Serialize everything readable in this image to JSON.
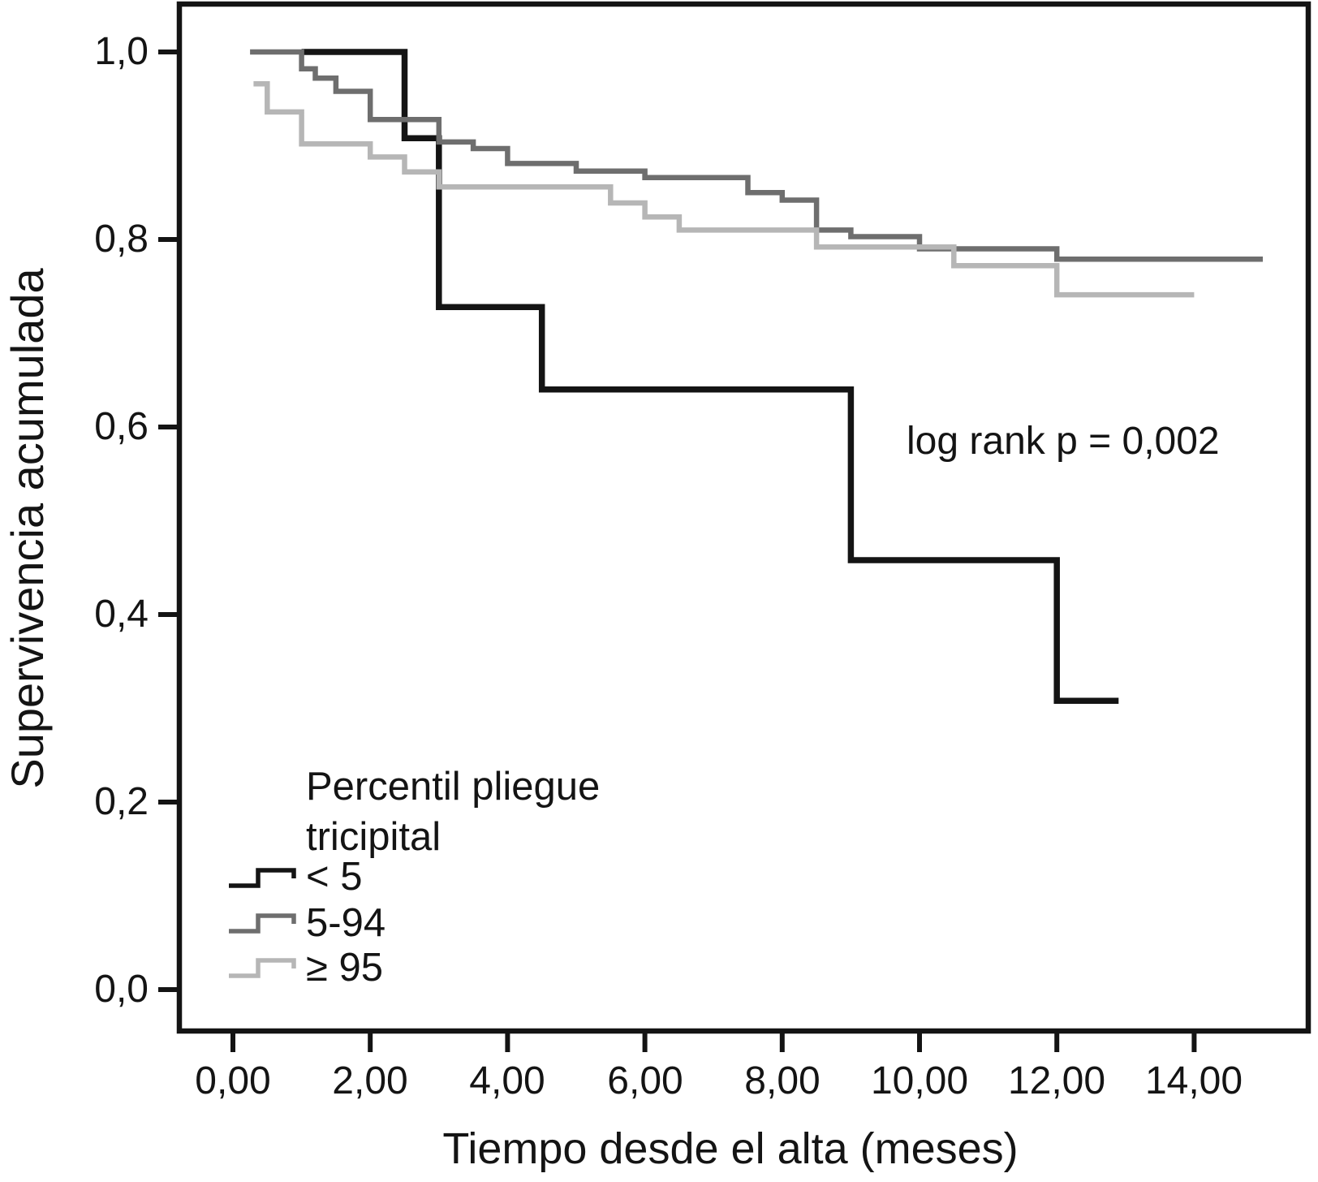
{
  "chart_data": {
    "type": "line",
    "variant": "kaplan_meier_step_survival",
    "title": "",
    "xlabel": "Tiempo desde el alta (meses)",
    "ylabel": "Supervivencia acumulada",
    "xlim": [
      -0.8,
      15.7
    ],
    "ylim": [
      -0.045,
      1.055
    ],
    "grid": false,
    "legend_position": "inside-lower-left",
    "x_ticks": {
      "values": [
        0,
        2,
        4,
        6,
        8,
        10,
        12,
        14
      ],
      "labels": [
        "0,00",
        "2,00",
        "4,00",
        "6,00",
        "8,00",
        "10,00",
        "12,00",
        "14,00"
      ]
    },
    "y_ticks": {
      "values": [
        1.0,
        0.8,
        0.6,
        0.4,
        0.2,
        0.0
      ],
      "labels": [
        "1,0",
        "0,8",
        "0,6",
        "0,4",
        "0,2",
        "0,0"
      ]
    },
    "annotation": {
      "text": "log rank p = 0,002",
      "x": 9.8,
      "y": 0.585
    },
    "series": [
      {
        "name": "< 5",
        "color": "#141414",
        "stroke_width": 7.5,
        "start": [
          1.0,
          1.0
        ],
        "steps": [
          [
            2.5,
            0.908
          ],
          [
            3.0,
            0.728
          ],
          [
            4.5,
            0.64
          ],
          [
            9.0,
            0.458
          ],
          [
            12.0,
            0.308
          ]
        ],
        "end": 12.9
      },
      {
        "name": "5-94",
        "color": "#6e6e6e",
        "stroke_width": 6.5,
        "start": [
          0.25,
          1.0
        ],
        "steps": [
          [
            1.0,
            0.982
          ],
          [
            1.2,
            0.972
          ],
          [
            1.5,
            0.958
          ],
          [
            2.0,
            0.928
          ],
          [
            3.0,
            0.904
          ],
          [
            3.5,
            0.897
          ],
          [
            4.0,
            0.881
          ],
          [
            5.0,
            0.873
          ],
          [
            6.0,
            0.866
          ],
          [
            7.5,
            0.85
          ],
          [
            8.0,
            0.842
          ],
          [
            8.5,
            0.81
          ],
          [
            9.0,
            0.803
          ],
          [
            10.0,
            0.79
          ],
          [
            12.0,
            0.779
          ]
        ],
        "end": 15.0
      },
      {
        "name": "≥ 95",
        "color": "#b6b6b6",
        "stroke_width": 6.5,
        "start": [
          0.3,
          0.966
        ],
        "steps": [
          [
            0.5,
            0.936
          ],
          [
            1.0,
            0.902
          ],
          [
            2.0,
            0.888
          ],
          [
            2.5,
            0.872
          ],
          [
            3.0,
            0.856
          ],
          [
            5.5,
            0.839
          ],
          [
            6.0,
            0.824
          ],
          [
            6.5,
            0.81
          ],
          [
            8.5,
            0.792
          ],
          [
            10.5,
            0.772
          ],
          [
            12.0,
            0.741
          ]
        ],
        "end": 14.0
      }
    ]
  },
  "legend": {
    "title_lines": [
      "Percentil pliegue",
      "tricipital"
    ],
    "items": [
      {
        "label": "< 5",
        "color": "#141414"
      },
      {
        "label": "5-94",
        "color": "#6e6e6e"
      },
      {
        "label": "≥ 95",
        "color": "#b6b6b6"
      }
    ]
  },
  "frame_color": "#141414"
}
